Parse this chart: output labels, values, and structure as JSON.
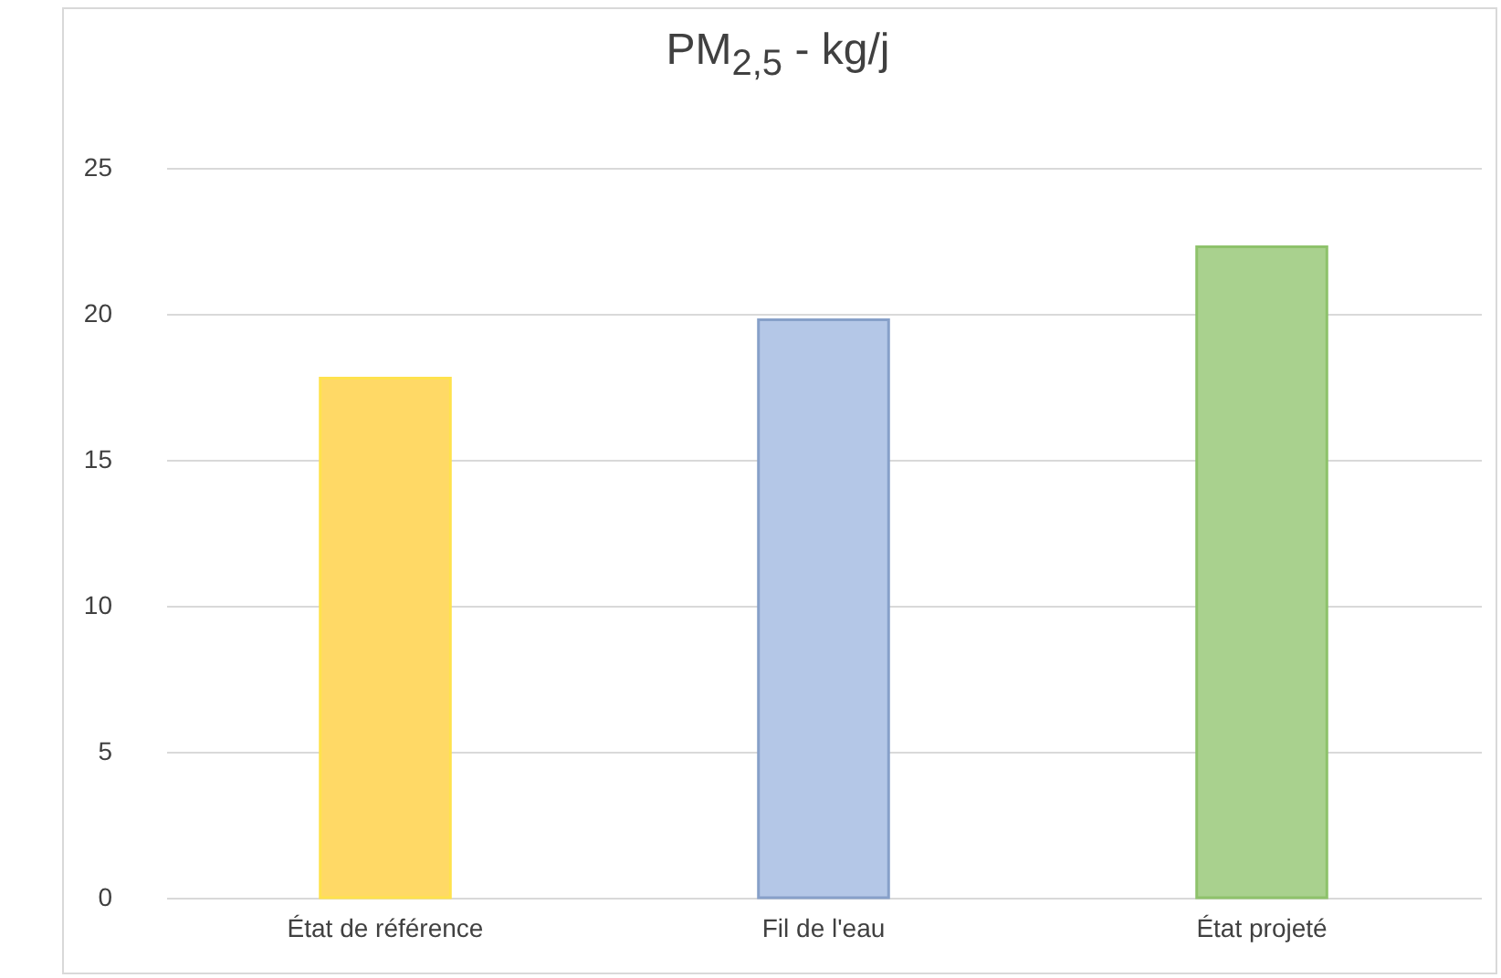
{
  "chart_data": {
    "type": "bar",
    "title": "PM$_{2,5}$ - kg/j",
    "categories": [
      "État de référence",
      "Fil de l'eau",
      "État projeté"
    ],
    "values": [
      17.8,
      19.8,
      22.3
    ],
    "colors": [
      "#ffd966",
      "#b4c7e7",
      "#a9d18e"
    ],
    "ylim": [
      0,
      25
    ],
    "yticks": [
      0,
      5,
      10,
      15,
      20,
      25
    ],
    "grid": "y"
  }
}
